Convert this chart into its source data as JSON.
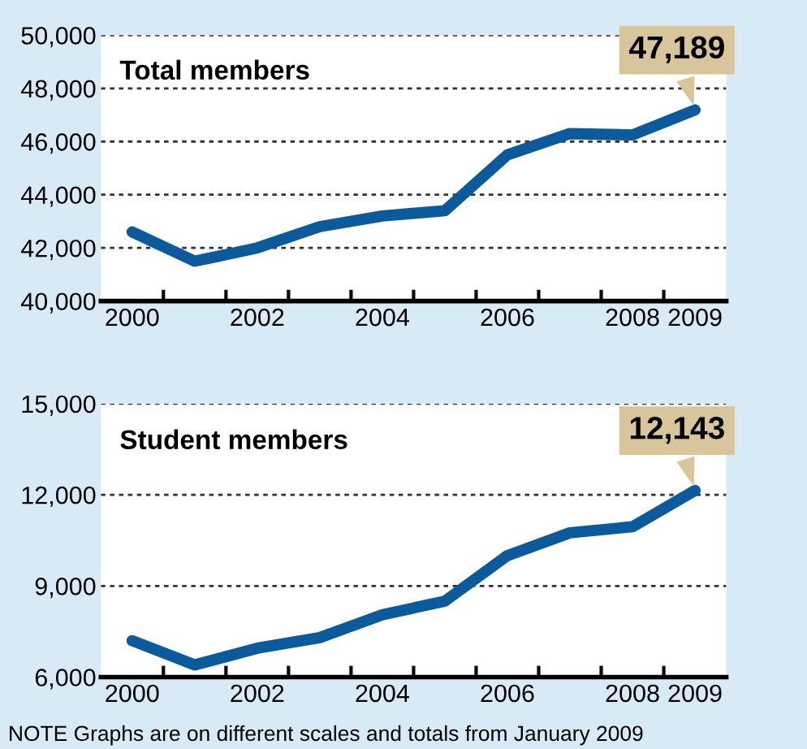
{
  "chart_data": [
    {
      "type": "line",
      "title": "Total members",
      "x": [
        2000,
        2001,
        2002,
        2003,
        2004,
        2005,
        2006,
        2007,
        2008,
        2009
      ],
      "series": [
        {
          "color": "#0a5a9c",
          "values": [
            42600,
            41500,
            42000,
            42800,
            43200,
            43400,
            45500,
            46300,
            46250,
            47189
          ]
        }
      ],
      "xlim": [
        1999.5,
        2009.5
      ],
      "xticks": [
        2000,
        2002,
        2004,
        2006,
        2008,
        2009,
        {
          "value": 2000.5,
          "label": null
        },
        {
          "value": 2001.5,
          "label": null
        },
        {
          "value": 2002.5,
          "label": null
        },
        {
          "value": 2003.5,
          "label": null
        },
        {
          "value": 2004.5,
          "label": null
        },
        {
          "value": 2005.5,
          "label": null
        },
        {
          "value": 2006.5,
          "label": null
        },
        {
          "value": 2007.5,
          "label": null
        },
        {
          "value": 2008.5,
          "label": null
        }
      ],
      "ylim": [
        40000,
        50000
      ],
      "yticks": [
        {
          "value": 40000,
          "label": "40,000"
        },
        {
          "value": 42000,
          "label": "42,000"
        },
        {
          "value": 44000,
          "label": "44,000"
        },
        {
          "value": 46000,
          "label": "46,000"
        },
        {
          "value": 48000,
          "label": "48,000"
        },
        {
          "value": 50000,
          "label": "50,000"
        }
      ],
      "grid": "y",
      "line_style": "solid",
      "legend": false,
      "annotations": [
        {
          "text": "47,189",
          "x": 2009,
          "y": 47189
        }
      ]
    },
    {
      "type": "line",
      "title": "Student members",
      "x": [
        2000,
        2001,
        2002,
        2003,
        2004,
        2005,
        2006,
        2007,
        2008,
        2009
      ],
      "series": [
        {
          "color": "#0a5a9c",
          "values": [
            7200,
            6400,
            6950,
            7300,
            8050,
            8500,
            10000,
            10750,
            10950,
            12143
          ]
        }
      ],
      "xlim": [
        1999.5,
        2009.5
      ],
      "xticks": [
        2000,
        2002,
        2004,
        2006,
        2008,
        2009,
        {
          "value": 2000.5,
          "label": null
        },
        {
          "value": 2001.5,
          "label": null
        },
        {
          "value": 2002.5,
          "label": null
        },
        {
          "value": 2003.5,
          "label": null
        },
        {
          "value": 2004.5,
          "label": null
        },
        {
          "value": 2005.5,
          "label": null
        },
        {
          "value": 2006.5,
          "label": null
        },
        {
          "value": 2007.5,
          "label": null
        },
        {
          "value": 2008.5,
          "label": null
        }
      ],
      "ylim": [
        6000,
        15000
      ],
      "yticks": [
        {
          "value": 6000,
          "label": "6,000"
        },
        {
          "value": 9000,
          "label": "9,000"
        },
        {
          "value": 12000,
          "label": "12,000"
        },
        {
          "value": 15000,
          "label": "15,000"
        }
      ],
      "grid": "y",
      "line_style": "solid",
      "legend": false,
      "annotations": [
        {
          "text": "12,143",
          "x": 2009,
          "y": 12143
        },
        "NOTE Graphs are on different scales and totals from January 2009"
      ]
    }
  ]
}
